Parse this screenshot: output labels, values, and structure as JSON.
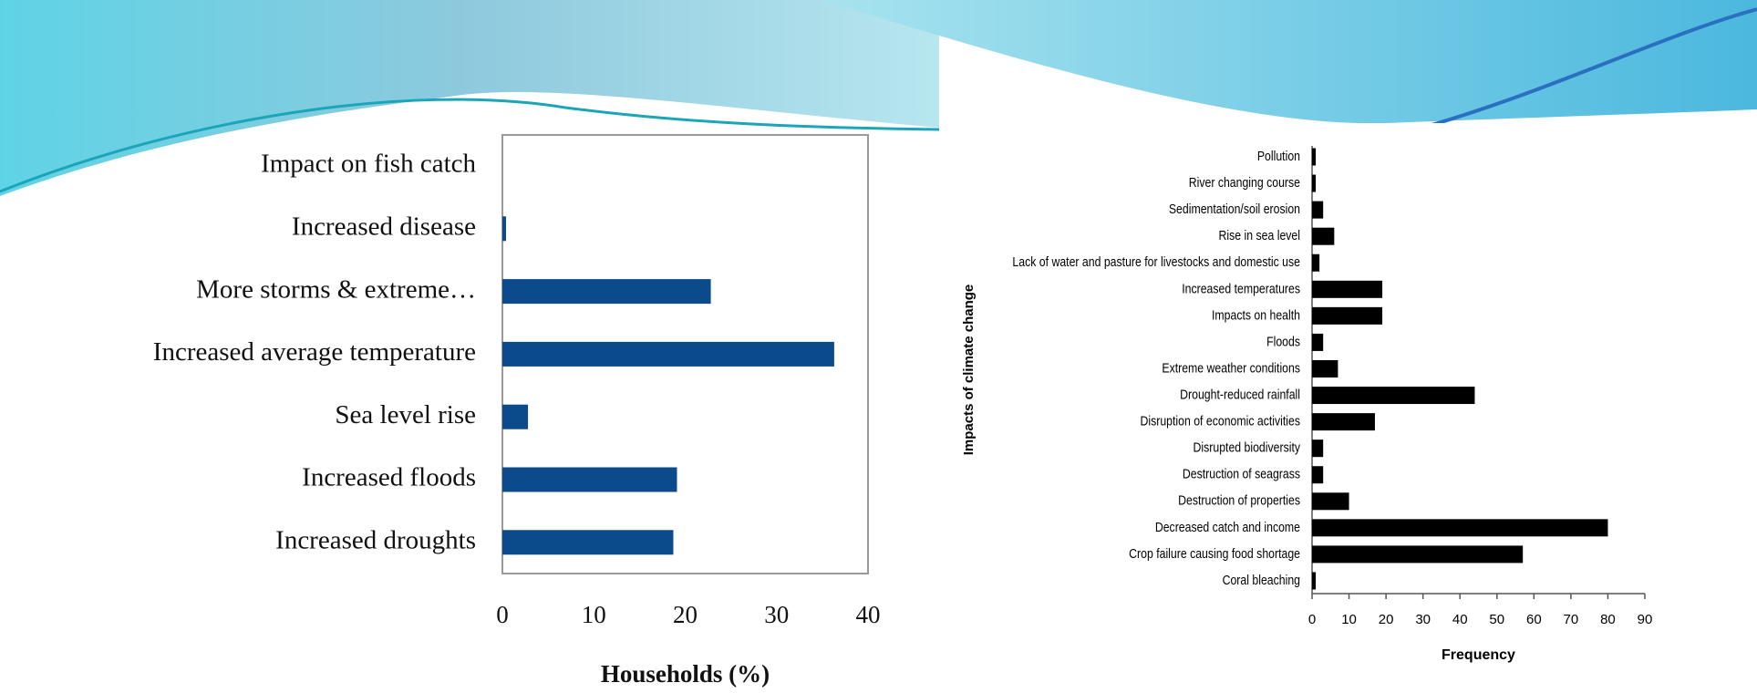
{
  "chart_data": [
    {
      "type": "bar",
      "orientation": "horizontal",
      "color": "#0b4a8b",
      "categories": [
        "Impact on fish catch",
        "Increased disease",
        "More storms & extreme…",
        "Increased average temperature",
        "Sea level rise",
        "Increased floods",
        "Increased droughts"
      ],
      "values": [
        0,
        0.4,
        22.8,
        36.3,
        2.8,
        19.1,
        18.7
      ],
      "xlim": [
        0,
        40
      ],
      "xticks": [
        0,
        10,
        20,
        30,
        40
      ],
      "xlabel": "Households (%)"
    },
    {
      "type": "bar",
      "orientation": "horizontal",
      "color": "#000000",
      "categories": [
        "Pollution",
        "River changing course",
        "Sedimentation/soil erosion",
        "Rise in sea level",
        "Lack of water and pasture for livestocks and domestic use",
        "Increased temperatures",
        "Impacts on health",
        "Floods",
        "Extreme weather conditions",
        "Drought-reduced rainfall",
        "Disruption of economic activities",
        "Disrupted biodiversity",
        "Destruction of seagrass",
        "Destruction of properties",
        "Decreased catch and income",
        "Crop failure causing food shortage",
        "Coral bleaching"
      ],
      "values": [
        1,
        1,
        3,
        6,
        2,
        19,
        19,
        3,
        7,
        44,
        17,
        3,
        3,
        10,
        80,
        57,
        1
      ],
      "xlim": [
        0,
        90
      ],
      "xticks": [
        0,
        10,
        20,
        30,
        40,
        50,
        60,
        70,
        80,
        90
      ],
      "xlabel": "Frequency",
      "ylabel": "Impacts of climate change"
    }
  ]
}
